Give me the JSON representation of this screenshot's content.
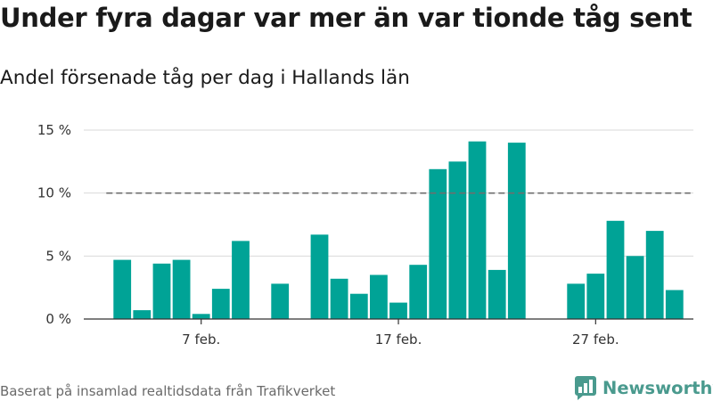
{
  "title": "Under fyra dagar var mer än var tionde tåg sent",
  "subtitle": "Andel försenade tåg per dag i Hallands län",
  "source": "Baserat på insamlad realtidsdata från Trafikverket",
  "brand": {
    "name": "Newsworthy",
    "logo_icon": "bar-chart-speech-bubble-icon"
  },
  "colors": {
    "bar": "#00a396",
    "reference_line": "#6e6e6e",
    "grid": "#d9d9d9",
    "axis": "#333333",
    "brand": "#4a9a8e"
  },
  "chart_data": {
    "type": "bar",
    "title": "Under fyra dagar var mer än var tionde tåg sent",
    "subtitle": "Andel försenade tåg per dag i Hallands län",
    "xlabel": "",
    "ylabel": "",
    "x": [
      "2019-02-03",
      "2019-02-04",
      "2019-02-05",
      "2019-02-06",
      "2019-02-07",
      "2019-02-08",
      "2019-02-09",
      "2019-02-10",
      "2019-02-11",
      "2019-02-12",
      "2019-02-13",
      "2019-02-14",
      "2019-02-15",
      "2019-02-16",
      "2019-02-17",
      "2019-02-18",
      "2019-02-19",
      "2019-02-20",
      "2019-02-21",
      "2019-02-22",
      "2019-02-23",
      "2019-02-24",
      "2019-02-25",
      "2019-02-26",
      "2019-02-27",
      "2019-02-28",
      "2019-03-01",
      "2019-03-02",
      "2019-03-03",
      "2019-03-04",
      "2019-03-05"
    ],
    "values": [
      4.7,
      0.7,
      4.4,
      4.7,
      0.4,
      2.4,
      6.2,
      null,
      2.8,
      null,
      6.7,
      3.2,
      2.0,
      3.5,
      1.3,
      4.3,
      11.9,
      12.5,
      14.1,
      3.9,
      14.0,
      null,
      null,
      2.8,
      3.6,
      7.8,
      5.0,
      7.0,
      2.3,
      null,
      null
    ],
    "unit": "%",
    "ylim": [
      0,
      15
    ],
    "yticks": [
      0,
      5,
      10,
      15
    ],
    "ytick_labels": [
      "0 %",
      "5 %",
      "10 %",
      "15 %"
    ],
    "xtick_labels": [
      {
        "x": "2019-02-07",
        "label": "7 feb."
      },
      {
        "x": "2019-02-17",
        "label": "17 feb."
      },
      {
        "x": "2019-02-27",
        "label": "27 feb."
      }
    ],
    "reference_line": {
      "y": 10,
      "style": "dashed",
      "from": "2019-02-03",
      "to": "2019-03-03"
    },
    "grid": true,
    "legend": "none"
  }
}
